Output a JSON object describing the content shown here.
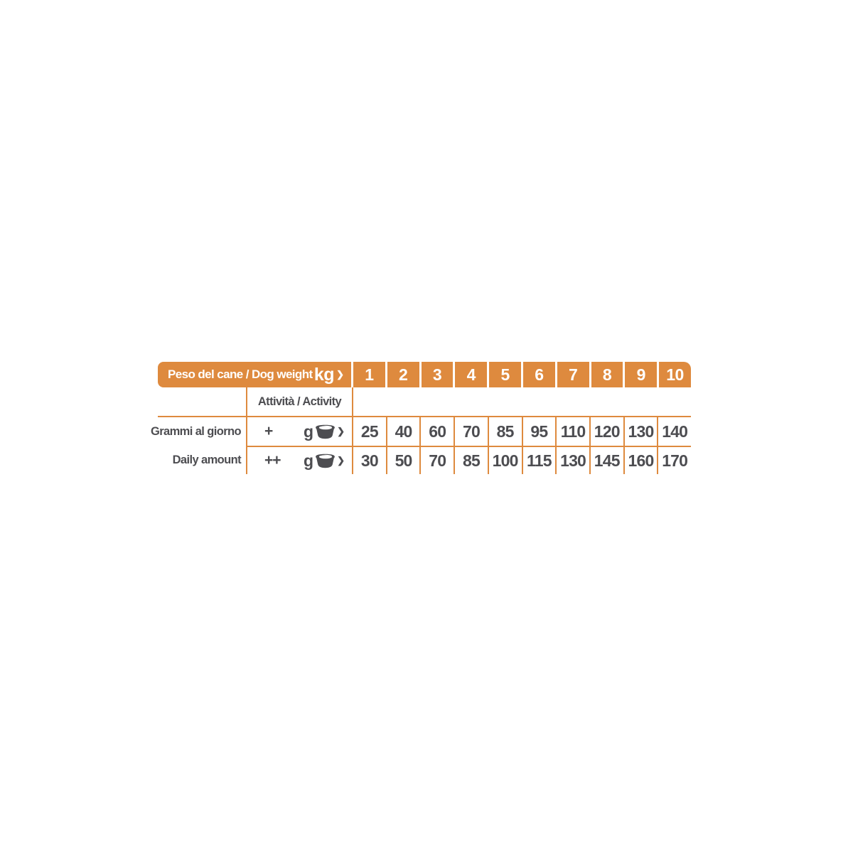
{
  "colors": {
    "orange": "#DE8A3E",
    "text_dark": "#4D4D51",
    "header_text": "#FFFFFF",
    "background": "#FFFFFF"
  },
  "table": {
    "header": {
      "label": "Peso del cane / Dog weight",
      "unit": "kg",
      "unit_arrow": "❯",
      "weights": [
        "1",
        "2",
        "3",
        "4",
        "5",
        "6",
        "7",
        "8",
        "9",
        "10"
      ]
    },
    "subheader": {
      "label": "Attività / Activity"
    },
    "rows": [
      {
        "label": "Grammi al giorno",
        "activity": "+",
        "unit": "g",
        "arrow": "❯",
        "values": [
          "25",
          "40",
          "60",
          "70",
          "85",
          "95",
          "110",
          "120",
          "130",
          "140"
        ]
      },
      {
        "label": "Daily amount",
        "activity": "++",
        "unit": "g",
        "arrow": "❯",
        "values": [
          "30",
          "50",
          "70",
          "85",
          "100",
          "115",
          "130",
          "145",
          "160",
          "170"
        ]
      }
    ]
  },
  "chart_data": {
    "type": "table",
    "title": "Peso del cane / Dog weight — Grammi al giorno / Daily amount",
    "columns": [
      1,
      2,
      3,
      4,
      5,
      6,
      7,
      8,
      9,
      10
    ],
    "column_unit": "kg",
    "value_unit": "g",
    "series": [
      {
        "name": "Attività + (grammi al giorno / daily amount)",
        "values": [
          25,
          40,
          60,
          70,
          85,
          95,
          110,
          120,
          130,
          140
        ]
      },
      {
        "name": "Attività ++ (grammi al giorno / daily amount)",
        "values": [
          30,
          50,
          70,
          85,
          100,
          115,
          130,
          145,
          160,
          170
        ]
      }
    ]
  }
}
